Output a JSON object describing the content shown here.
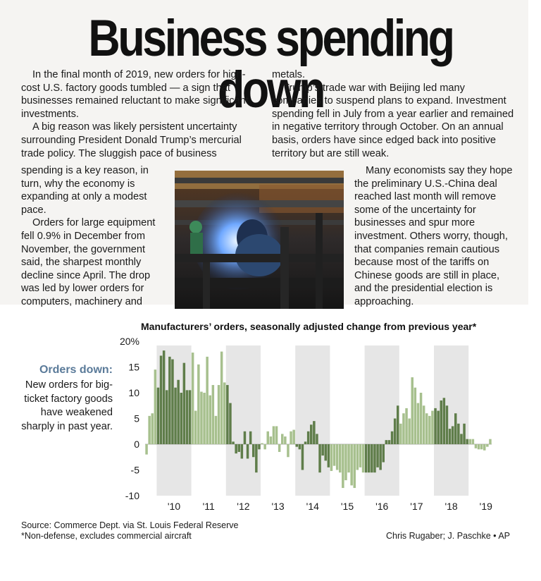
{
  "headline": "Business spending down",
  "article": {
    "col1": [
      "In the final month of 2019, new orders for high-cost U.S. factory goods tumbled — a sign that businesses remained reluctant to make significant investments.",
      "A big reason was likely persistent uncertainty surrounding President Donald Trump’s mercurial trade policy. The sluggish pace of business"
    ],
    "col1b": [
      "spending is a key reason, in turn, why the economy is expanding at only a modest pace.",
      "Orders for large equipment fell 0.9% in December from November, the government said, the sharpest monthly decline since April. The drop was led by lower orders for computers, machinery and"
    ],
    "col2": [
      "metals.",
      "Trump’s trade war with Beijing led many companies to suspend plans to expand. Investment spending fell in July from a year earlier and remained in negative territory through October. On an annual basis, orders have since edged back into positive territory but are still weak."
    ],
    "col2b": [
      "Many economists say they hope the preliminary U.S.-China deal reached last month will remove some of the uncertainty for businesses and spur more investment. Others worry, though, that companies remain cautious because most of the tariffs on Chinese goods are still in place, and the presidential election is approaching."
    ]
  },
  "sidebar": {
    "heading": "Orders down:",
    "body": "New orders for big-ticket factory goods have weakened sharply in past year."
  },
  "source": {
    "line1": "Source: Commerce Dept. via St. Louis Federal Reserve",
    "line2": "*Non-defense, excludes commercial aircraft"
  },
  "credit": "Chris Rugaber; J. Paschke • AP",
  "colors": {
    "dark_bar": "#5f7d4a",
    "light_bar": "#a7c08e",
    "shade": "#e6e6e6",
    "panel": "#f5f4f2"
  },
  "chart_data": {
    "type": "bar",
    "title": "Manufacturers’ orders, seasonally adjusted change from previous year*",
    "ylim": [
      -10,
      20
    ],
    "yticks": [
      20,
      15,
      10,
      5,
      0,
      -5,
      -10
    ],
    "ytick_labels": [
      "20%",
      "15",
      "10",
      "5",
      "0",
      "-5",
      "-10"
    ],
    "x_start": "2009-09",
    "x_labels": [
      "'10",
      "'11",
      "'12",
      "'13",
      "'14",
      "'15",
      "'16",
      "'17",
      "'18",
      "'19"
    ],
    "shaded_years": [
      "'10",
      "'12",
      "'14",
      "'16",
      "'18"
    ],
    "values": [
      -2,
      5.5,
      6,
      14.5,
      11,
      17.2,
      18.2,
      10.5,
      17,
      16.5,
      11,
      12.5,
      10,
      15.8,
      10.5,
      10.5,
      17.8,
      6.5,
      15.5,
      10.2,
      10,
      17,
      9.5,
      11.5,
      5.5,
      11.5,
      18,
      12,
      11.5,
      8,
      0.5,
      -1.8,
      -1.5,
      -2.8,
      2.5,
      -2.8,
      2.5,
      -2.5,
      -5.5,
      -1,
      0.2,
      -1,
      2.5,
      1.5,
      3.5,
      3.5,
      -1.5,
      2,
      1.5,
      -2.5,
      2.5,
      2.8,
      -0.5,
      -1,
      -5,
      0.5,
      2.5,
      3.8,
      4.5,
      2,
      -5.5,
      -2.2,
      -3.2,
      -4.5,
      -5.2,
      -4.2,
      -5,
      -5.5,
      -8.5,
      -7,
      -5.5,
      -8,
      -8.5,
      -5,
      -4.5,
      -5.5,
      -5.5,
      -5.5,
      -5.5,
      -5.5,
      -4.5,
      -5,
      -3.5,
      0.8,
      0.8,
      2.5,
      5,
      7.5,
      4,
      6,
      7,
      5,
      13,
      11,
      8,
      10,
      7.5,
      6,
      5.5,
      6.5,
      7,
      6.5,
      8.5,
      9,
      7.5,
      3,
      3.5,
      6,
      4,
      2,
      4,
      1,
      1,
      1,
      -0.8,
      -1,
      -1,
      -1.2,
      -0.5,
      1
    ]
  }
}
